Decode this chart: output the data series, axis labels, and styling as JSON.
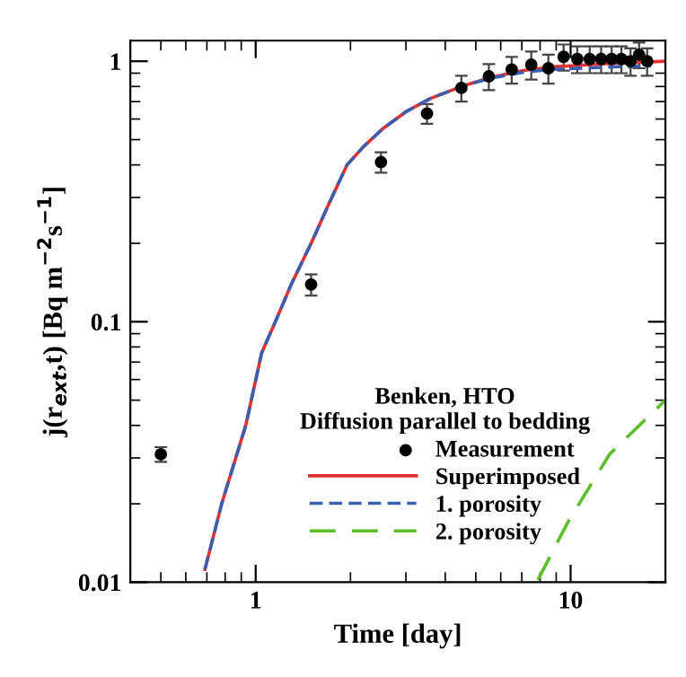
{
  "chart_data": {
    "type": "line",
    "xlabel": "Time [day]",
    "ylabel": "j(r$_{ext}$,t) [Bq m$^{−2}$s$^{−1}$]",
    "legend_title": "Benken, HTO\nDiffusion parallel to bedding",
    "legend": "bottom right",
    "log": "xy",
    "grid": false,
    "xlim": [
      0.4,
      20
    ],
    "ylim": [
      0.01,
      1.2
    ],
    "xticks": [
      1,
      10
    ],
    "yticks": [
      0.01,
      0.1,
      1
    ],
    "series": [
      {
        "name": "Measurement",
        "type": "scatter",
        "marker": "circle",
        "color": "#000000",
        "x": [
          0.5,
          1.5,
          2.5,
          3.5,
          4.5,
          5.5,
          6.5,
          7.5,
          8.5,
          9.5,
          10.5,
          11.5,
          12.5,
          13.5,
          14.5,
          15.5,
          16.5,
          17.5
        ],
        "values": [
          0.031,
          0.139,
          0.41,
          0.63,
          0.79,
          0.875,
          0.93,
          0.97,
          0.94,
          1.04,
          1.02,
          1.02,
          1.02,
          1.02,
          1.02,
          1.0,
          1.06,
          1.0
        ],
        "errors": [
          0.002,
          0.013,
          0.037,
          0.055,
          0.09,
          0.1,
          0.11,
          0.12,
          0.12,
          0.12,
          0.12,
          0.12,
          0.12,
          0.12,
          0.12,
          0.12,
          0.12,
          0.12
        ]
      },
      {
        "name": "Superimposed",
        "line_style": "solid",
        "color": "#e03030",
        "x": [
          0.69,
          0.78,
          0.93,
          1.045,
          1.155,
          1.3,
          1.5,
          1.7,
          1.95,
          2.2,
          2.53,
          3.0,
          3.59,
          4.5,
          5.55,
          7.0,
          8.6,
          13.3,
          20
        ],
        "values": [
          0.0112,
          0.02,
          0.04,
          0.076,
          0.1,
          0.14,
          0.2,
          0.28,
          0.4,
          0.47,
          0.55,
          0.64,
          0.72,
          0.8,
          0.865,
          0.92,
          0.95,
          0.98,
          1.0
        ]
      },
      {
        "name": "1. porosity",
        "line_style": "dashed",
        "color": "#3a5fb0",
        "x": [
          0.69,
          0.78,
          0.93,
          1.045,
          1.155,
          1.3,
          1.5,
          1.7,
          1.95,
          2.2,
          2.53,
          3.0,
          3.59,
          4.5,
          5.55,
          7.0,
          8.6,
          13.3,
          18
        ],
        "values": [
          0.0112,
          0.02,
          0.04,
          0.076,
          0.1,
          0.14,
          0.2,
          0.28,
          0.4,
          0.47,
          0.55,
          0.64,
          0.72,
          0.8,
          0.86,
          0.905,
          0.93,
          0.95,
          0.96
        ]
      },
      {
        "name": "2. porosity",
        "line_style": "dashed",
        "color": "#5cbf2a",
        "x": [
          7.87,
          9.8,
          13.3,
          20
        ],
        "values": [
          0.0102,
          0.017,
          0.031,
          0.05
        ]
      }
    ]
  }
}
